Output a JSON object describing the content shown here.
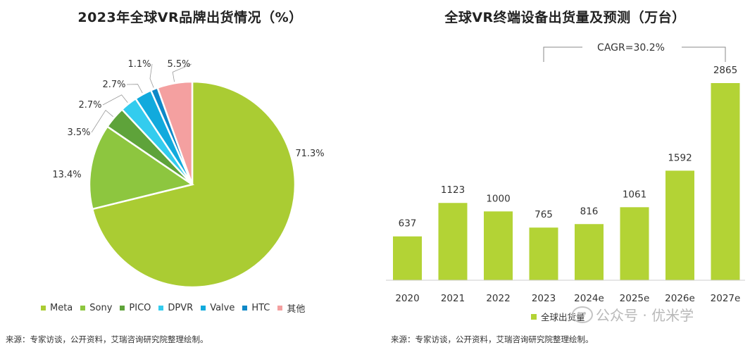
{
  "left": {
    "title": "2023年全球VR品牌出货情况（%）",
    "source": "来源：专家访谈，公开资料，艾瑞咨询研究院整理绘制。"
  },
  "right": {
    "title": "全球VR终端设备出货量及预测（万台）",
    "source": "来源：专家访谈，公开资料，艾瑞咨询研究院整理绘制。",
    "cagr_label": "CAGR=30.2%",
    "watermark": "公众号 · 优米学"
  },
  "colors": {
    "meta": "#aacc33",
    "sony": "#8dc63f",
    "pico": "#5ea33a",
    "dpvr": "#33ccee",
    "valve": "#11aadd",
    "htc": "#0e88c7",
    "other": "#f4a0a0",
    "bar": "#b3d335"
  },
  "chart_data": [
    {
      "type": "pie",
      "title": "2023年全球VR品牌出货情况（%）",
      "slices": [
        {
          "name": "Meta",
          "value": 71.3,
          "label": "71.3%",
          "color": "#aacc33"
        },
        {
          "name": "Sony",
          "value": 13.4,
          "label": "13.4%",
          "color": "#8dc63f"
        },
        {
          "name": "PICO",
          "value": 3.5,
          "label": "3.5%",
          "color": "#5ea33a"
        },
        {
          "name": "DPVR",
          "value": 2.7,
          "label": "2.7%",
          "color": "#33ccee"
        },
        {
          "name": "Valve",
          "value": 2.7,
          "label": "2.7%",
          "color": "#11aadd"
        },
        {
          "name": "HTC",
          "value": 1.1,
          "label": "1.1%",
          "color": "#0e88c7"
        },
        {
          "name": "其他",
          "value": 5.5,
          "label": "5.5%",
          "color": "#f4a0a0"
        }
      ],
      "legend_position": "bottom"
    },
    {
      "type": "bar",
      "title": "全球VR终端设备出货量及预测（万台）",
      "categories": [
        "2020",
        "2021",
        "2022",
        "2023",
        "2024e",
        "2025e",
        "2026e",
        "2027e"
      ],
      "series": [
        {
          "name": "全球出货量",
          "values": [
            637,
            1123,
            1000,
            765,
            816,
            1061,
            1592,
            2865
          ],
          "color": "#b3d335"
        }
      ],
      "annotation": "CAGR=30.2%",
      "ylim": [
        0,
        2865
      ],
      "legend_position": "bottom",
      "grid": false
    }
  ]
}
